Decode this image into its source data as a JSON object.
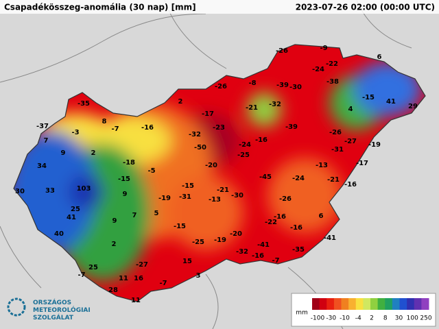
{
  "header": {
    "title": "Csapadékösszeg-anomália (30 nap) [mm]",
    "time": "2023-07-26 02:00 (00:00 UTC)"
  },
  "logo": {
    "lines": [
      "ORSZÁGOS",
      "METEOROLÓGIAI",
      "SZOLGÁLAT"
    ]
  },
  "legend": {
    "unit": "mm",
    "ticks": [
      -100,
      -30,
      -10,
      -4,
      2,
      8,
      30,
      100,
      250
    ]
  },
  "stations": [
    -26,
    -9,
    6,
    -24,
    -22,
    -38,
    -8,
    -39,
    -30,
    -26,
    -15,
    41,
    29,
    2,
    -35,
    -21,
    -32,
    4,
    -17,
    8,
    -7,
    -16,
    -23,
    -39,
    -26,
    -37,
    -3,
    -32,
    -27,
    -19,
    7,
    -16,
    -50,
    -24,
    -31,
    9,
    2,
    -25,
    -18,
    -20,
    -13,
    -17,
    34,
    -5,
    -45,
    -24,
    -21,
    -15,
    -16,
    30,
    33,
    103,
    -15,
    -21,
    -30,
    -19,
    -31,
    -13,
    9,
    -26,
    25,
    5,
    41,
    9,
    7,
    -16,
    6,
    -22,
    -15,
    -16,
    40,
    -20,
    -25,
    -19,
    -41,
    2,
    -41,
    -35,
    -32,
    -16,
    25,
    -27,
    15,
    -7,
    -7,
    11,
    16,
    3,
    -7,
    28,
    11
  ]
}
